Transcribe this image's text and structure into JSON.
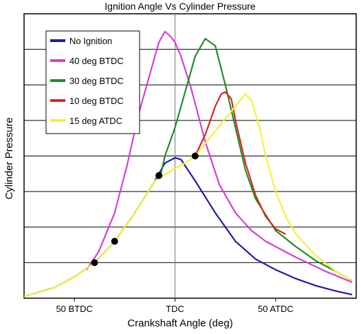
{
  "chart_data": {
    "type": "line",
    "title": "Ignition Angle Vs Cylinder Pressure",
    "xlabel": "Crankshaft Angle (deg)",
    "ylabel": "Cylinder Pressure",
    "xlim": [
      -75,
      90
    ],
    "ylim": [
      0,
      8
    ],
    "grid": true,
    "legend_position": "top-left",
    "x_ticks": [
      {
        "value": -50,
        "label": "50 BTDC"
      },
      {
        "value": 0,
        "label": "TDC"
      },
      {
        "value": 50,
        "label": "50 ATDC"
      }
    ],
    "series": [
      {
        "name": "No Ignition",
        "color": "#1a1aa8",
        "x": [
          -75,
          -60,
          -50,
          -40,
          -30,
          -20,
          -10,
          -5,
          0,
          3,
          10,
          20,
          30,
          40,
          50,
          60,
          70,
          80,
          88
        ],
        "y": [
          0.05,
          0.3,
          0.6,
          1.0,
          1.6,
          2.4,
          3.3,
          3.8,
          3.95,
          3.9,
          3.3,
          2.4,
          1.6,
          1.1,
          0.8,
          0.55,
          0.35,
          0.2,
          0.1
        ]
      },
      {
        "name": "40 deg BTDC",
        "color": "#d43fd4",
        "x": [
          -44,
          -38,
          -30,
          -24,
          -18,
          -12,
          -8,
          -5,
          -2,
          0,
          3,
          8,
          15,
          22,
          30,
          38,
          45,
          60,
          75,
          88
        ],
        "y": [
          0.8,
          1.3,
          2.4,
          3.7,
          5.2,
          6.4,
          7.2,
          7.5,
          7.35,
          7.2,
          6.8,
          5.9,
          4.4,
          3.2,
          2.4,
          1.9,
          1.6,
          1.15,
          0.75,
          0.45
        ]
      },
      {
        "name": "30 deg BTDC",
        "color": "#1e8c2a",
        "x": [
          -7,
          -5,
          0,
          5,
          10,
          15,
          20,
          25,
          30,
          35,
          40,
          50,
          60,
          70,
          80,
          88
        ],
        "y": [
          3.5,
          4.0,
          4.8,
          5.8,
          6.8,
          7.3,
          7.1,
          6.0,
          4.8,
          3.6,
          2.8,
          1.9,
          1.45,
          1.05,
          0.75,
          0.5
        ]
      },
      {
        "name": "10 deg BTDC",
        "color": "#d42a1e",
        "x": [
          10,
          15,
          20,
          23,
          25,
          28,
          30,
          35,
          40,
          45,
          50,
          55
        ],
        "y": [
          4.0,
          4.6,
          5.4,
          5.75,
          5.8,
          5.6,
          5.0,
          3.8,
          2.9,
          2.3,
          1.95,
          1.8
        ]
      },
      {
        "name": "15 deg ATDC",
        "color": "#f2f23a",
        "x": [
          -75,
          -60,
          -50,
          -40,
          -30,
          -20,
          -10,
          0,
          5,
          10,
          15,
          20,
          25,
          30,
          35,
          38,
          42,
          45,
          50,
          55,
          60,
          70,
          80,
          88
        ],
        "y": [
          0.05,
          0.3,
          0.6,
          1.0,
          1.6,
          2.4,
          3.3,
          3.65,
          3.8,
          4.0,
          4.35,
          4.7,
          5.05,
          5.4,
          5.75,
          5.55,
          4.8,
          4.0,
          3.0,
          2.3,
          1.8,
          1.2,
          0.75,
          0.5
        ]
      }
    ],
    "ignition_markers": [
      {
        "x": -40,
        "y": 1.0
      },
      {
        "x": -30,
        "y": 1.6
      },
      {
        "x": -8,
        "y": 3.45
      },
      {
        "x": 10,
        "y": 4.0
      }
    ]
  }
}
